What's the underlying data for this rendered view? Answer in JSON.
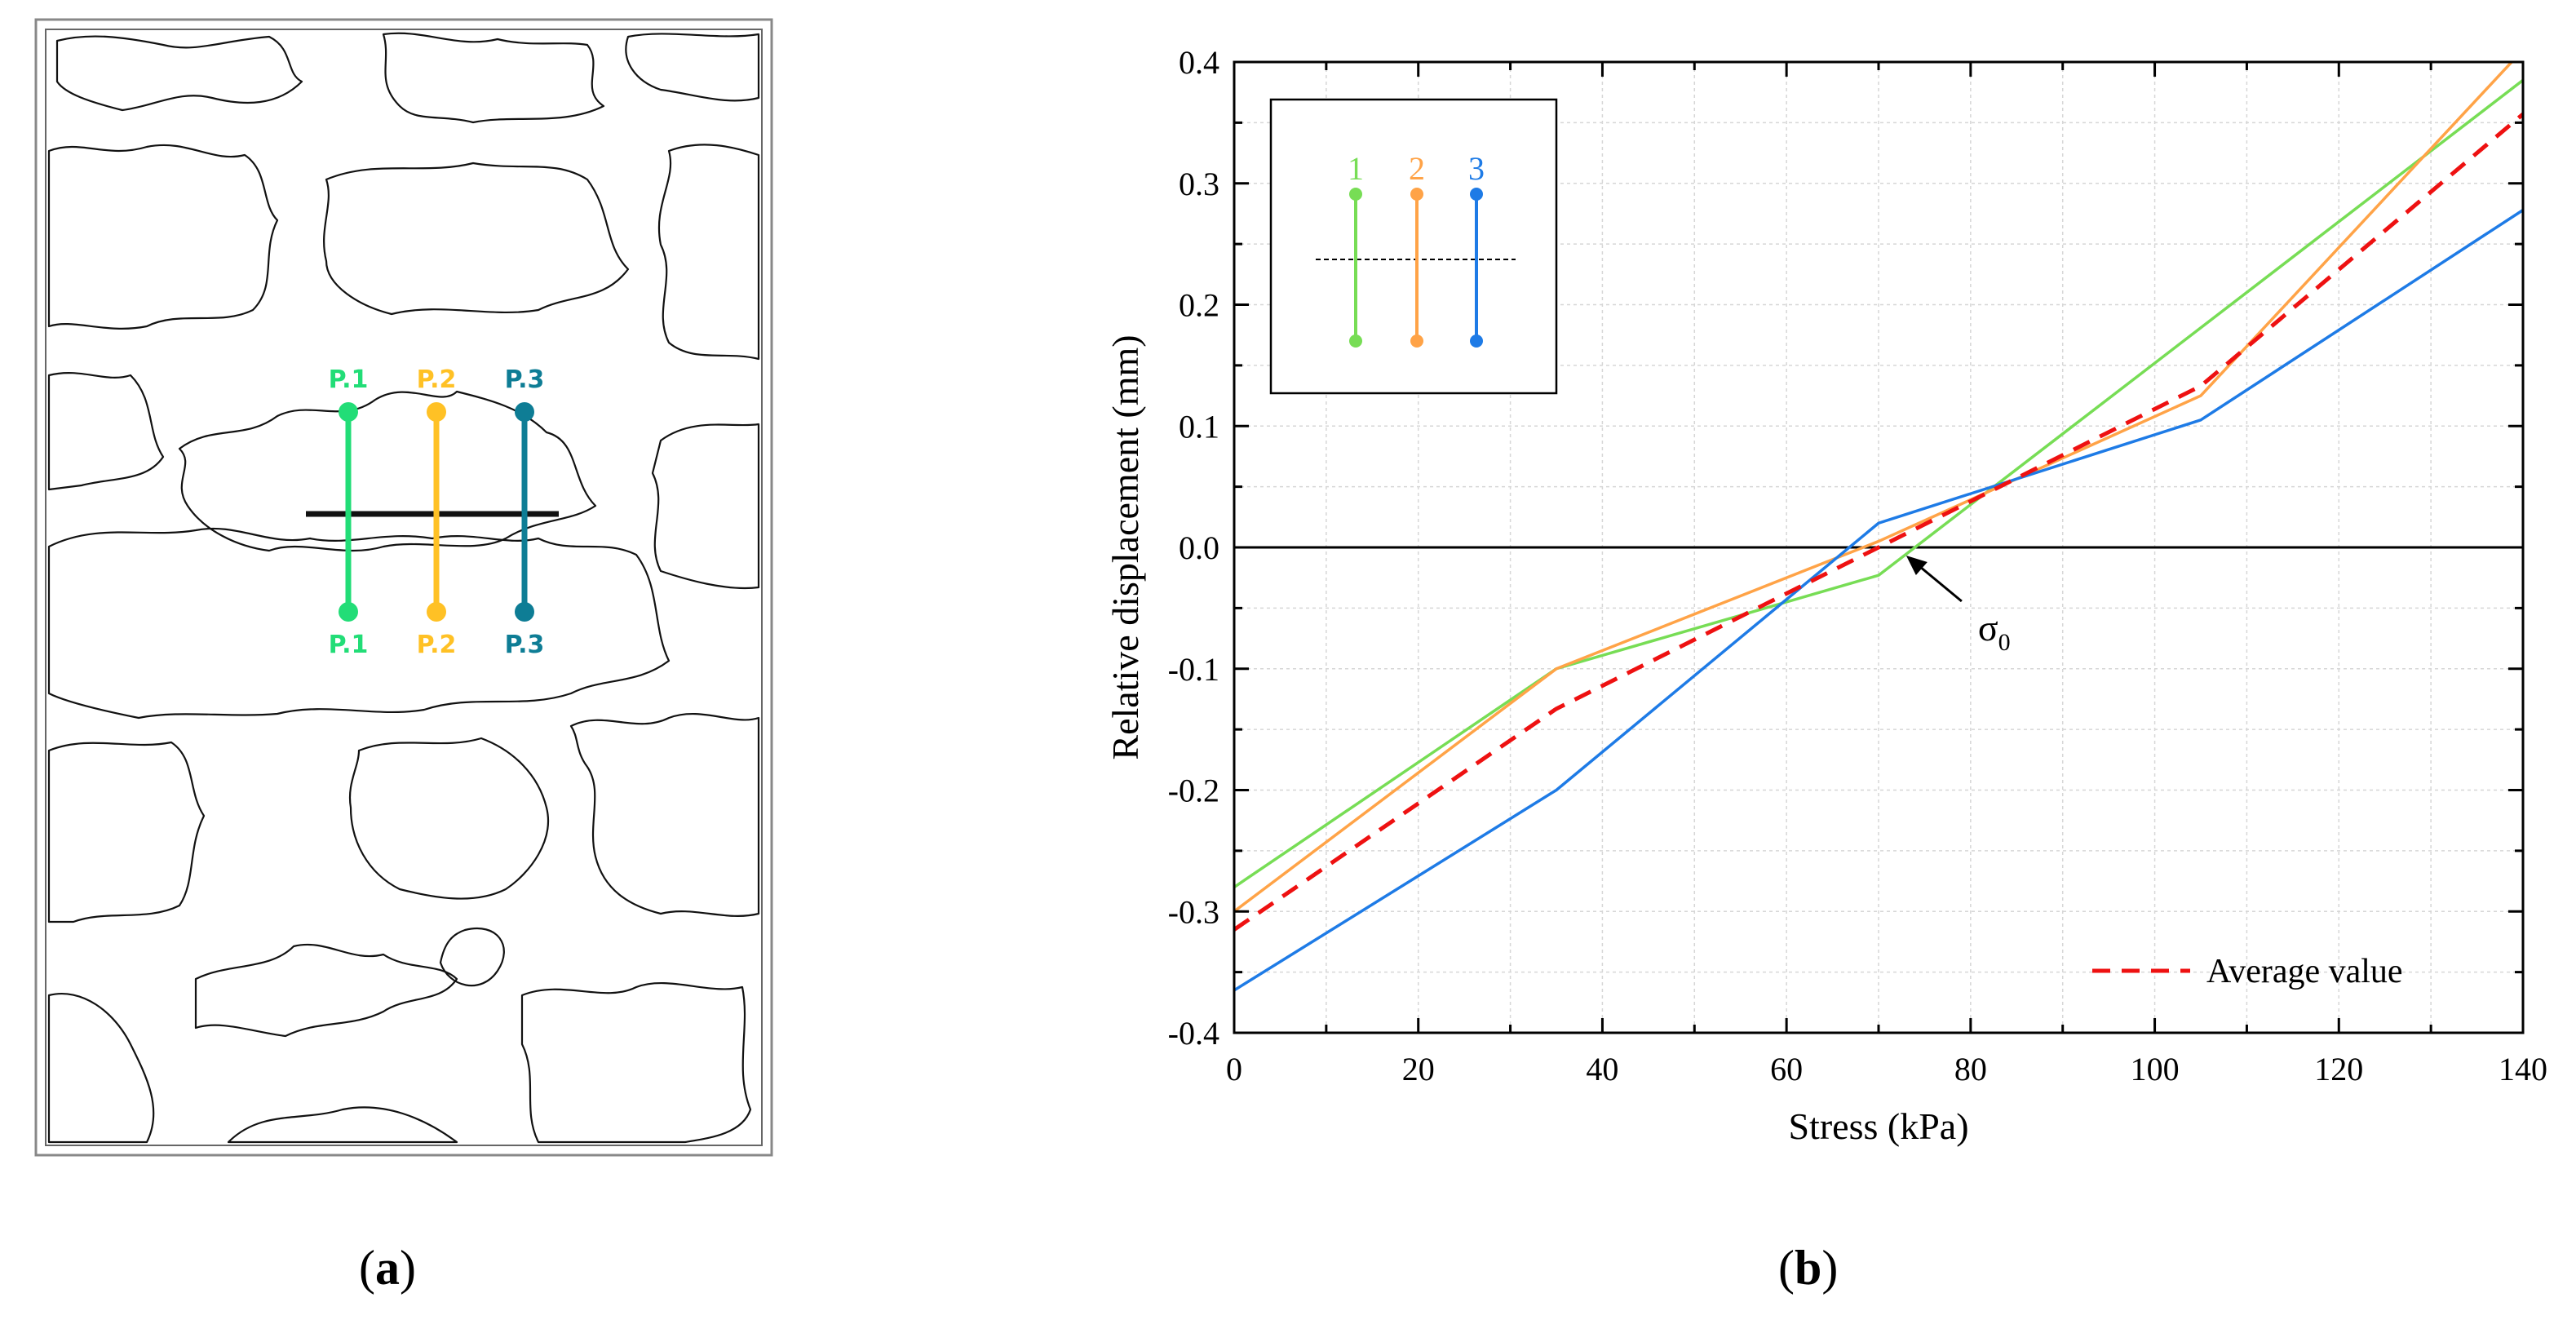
{
  "panel_a": {
    "points": [
      {
        "top_label": "P.1",
        "bottom_label": "P.1",
        "color": "#22dd77"
      },
      {
        "top_label": "P.2",
        "bottom_label": "P.2",
        "color": "#ffc125"
      },
      {
        "top_label": "P.3",
        "bottom_label": "P.3",
        "color": "#0e7d95"
      }
    ]
  },
  "captions": {
    "a_open": "(",
    "a_letter": "a",
    "a_close": ")",
    "b_open": "(",
    "b_letter": "b",
    "b_close": ")"
  },
  "chart_data": {
    "type": "line",
    "xlabel": "Stress (kPa)",
    "ylabel": "Relative displacement (mm)",
    "xlim": [
      0,
      140
    ],
    "ylim": [
      -0.4,
      0.4
    ],
    "xticks": [
      0,
      20,
      40,
      60,
      80,
      100,
      120,
      140
    ],
    "yticks": [
      -0.4,
      -0.3,
      -0.2,
      -0.1,
      0.0,
      0.1,
      0.2,
      0.3,
      0.4
    ],
    "ytick_labels": [
      "-0.4",
      "-0.3",
      "-0.2",
      "-0.1",
      "0.0",
      "0.1",
      "0.2",
      "0.3",
      "0.4"
    ],
    "grid": true,
    "series": [
      {
        "name": "1",
        "color": "#77dd55",
        "dash": false,
        "x": [
          0,
          35,
          70,
          140
        ],
        "y": [
          -0.28,
          -0.1,
          -0.023,
          0.385
        ]
      },
      {
        "name": "2",
        "color": "#ffa347",
        "dash": false,
        "x": [
          0,
          35,
          70,
          105,
          140
        ],
        "y": [
          -0.3,
          -0.1,
          0.005,
          0.125,
          0.41
        ]
      },
      {
        "name": "3",
        "color": "#1e7be6",
        "dash": false,
        "x": [
          0,
          35,
          70,
          105,
          140
        ],
        "y": [
          -0.365,
          -0.2,
          0.02,
          0.105,
          0.278
        ]
      },
      {
        "name": "Average value",
        "color": "#ee1111",
        "dash": true,
        "x": [
          0,
          35,
          70,
          105,
          140
        ],
        "y": [
          -0.315,
          -0.133,
          0.0,
          0.133,
          0.357
        ]
      }
    ],
    "legend": {
      "label": "Average value",
      "position": "bottom-right"
    },
    "inset": {
      "position": "top-left",
      "labels": [
        "1",
        "2",
        "3"
      ]
    },
    "annotation": {
      "text": "σ",
      "subscript": "0",
      "x": 73,
      "y": 0
    }
  }
}
